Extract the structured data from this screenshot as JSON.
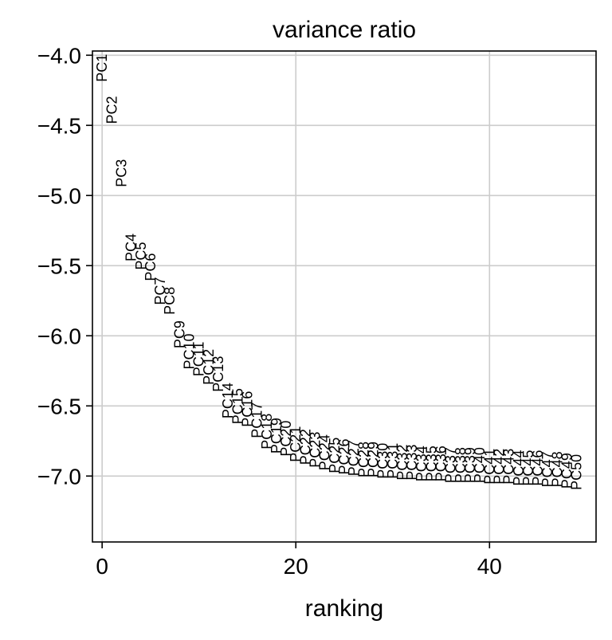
{
  "chart_data": {
    "type": "scatter",
    "title": "variance ratio",
    "xlabel": "ranking",
    "ylabel": "",
    "xlim": [
      -1,
      51
    ],
    "ylim": [
      -7.47,
      -3.97
    ],
    "xticks": [
      0,
      20,
      40
    ],
    "yticks": [
      -4.0,
      -4.5,
      -5.0,
      -5.5,
      -6.0,
      -6.5,
      -7.0
    ],
    "xtick_labels": [
      "0",
      "20",
      "40"
    ],
    "ytick_labels": [
      "−4.0",
      "−4.5",
      "−5.0",
      "−5.5",
      "−6.0",
      "−6.5",
      "−7.0"
    ],
    "grid": true,
    "labels": [
      "PC1",
      "PC2",
      "PC3",
      "PC4",
      "PC5",
      "PC6",
      "PC7",
      "PC8",
      "PC9",
      "PC10",
      "PC11",
      "PC12",
      "PC13",
      "PC14",
      "PC15",
      "PC16",
      "PC17",
      "PC18",
      "PC19",
      "PC20",
      "PC21",
      "PC22",
      "PC23",
      "PC24",
      "PC25",
      "PC26",
      "PC27",
      "PC28",
      "PC29",
      "PC30",
      "PC31",
      "PC32",
      "PC33",
      "PC34",
      "PC35",
      "PC36",
      "PC37",
      "PC38",
      "PC39",
      "PC40",
      "PC41",
      "PC42",
      "PC43",
      "PC44",
      "PC45",
      "PC46",
      "PC47",
      "PC48",
      "PC49",
      "PC50"
    ],
    "x": [
      0,
      1,
      2,
      3,
      4,
      5,
      6,
      7,
      8,
      9,
      10,
      11,
      12,
      13,
      14,
      15,
      16,
      17,
      18,
      19,
      20,
      21,
      22,
      23,
      24,
      25,
      26,
      27,
      28,
      29,
      30,
      31,
      32,
      33,
      34,
      35,
      36,
      37,
      38,
      39,
      40,
      41,
      42,
      43,
      44,
      45,
      46,
      47,
      48,
      49
    ],
    "y": [
      -4.19,
      -4.49,
      -4.94,
      -5.47,
      -5.53,
      -5.61,
      -5.78,
      -5.85,
      -6.09,
      -6.24,
      -6.29,
      -6.35,
      -6.4,
      -6.59,
      -6.63,
      -6.65,
      -6.73,
      -6.81,
      -6.84,
      -6.86,
      -6.9,
      -6.92,
      -6.94,
      -6.96,
      -6.98,
      -6.99,
      -7.0,
      -7.01,
      -7.01,
      -7.02,
      -7.02,
      -7.03,
      -7.03,
      -7.04,
      -7.04,
      -7.04,
      -7.05,
      -7.05,
      -7.05,
      -7.05,
      -7.06,
      -7.06,
      -7.06,
      -7.07,
      -7.07,
      -7.07,
      -7.08,
      -7.08,
      -7.09,
      -7.1
    ]
  }
}
